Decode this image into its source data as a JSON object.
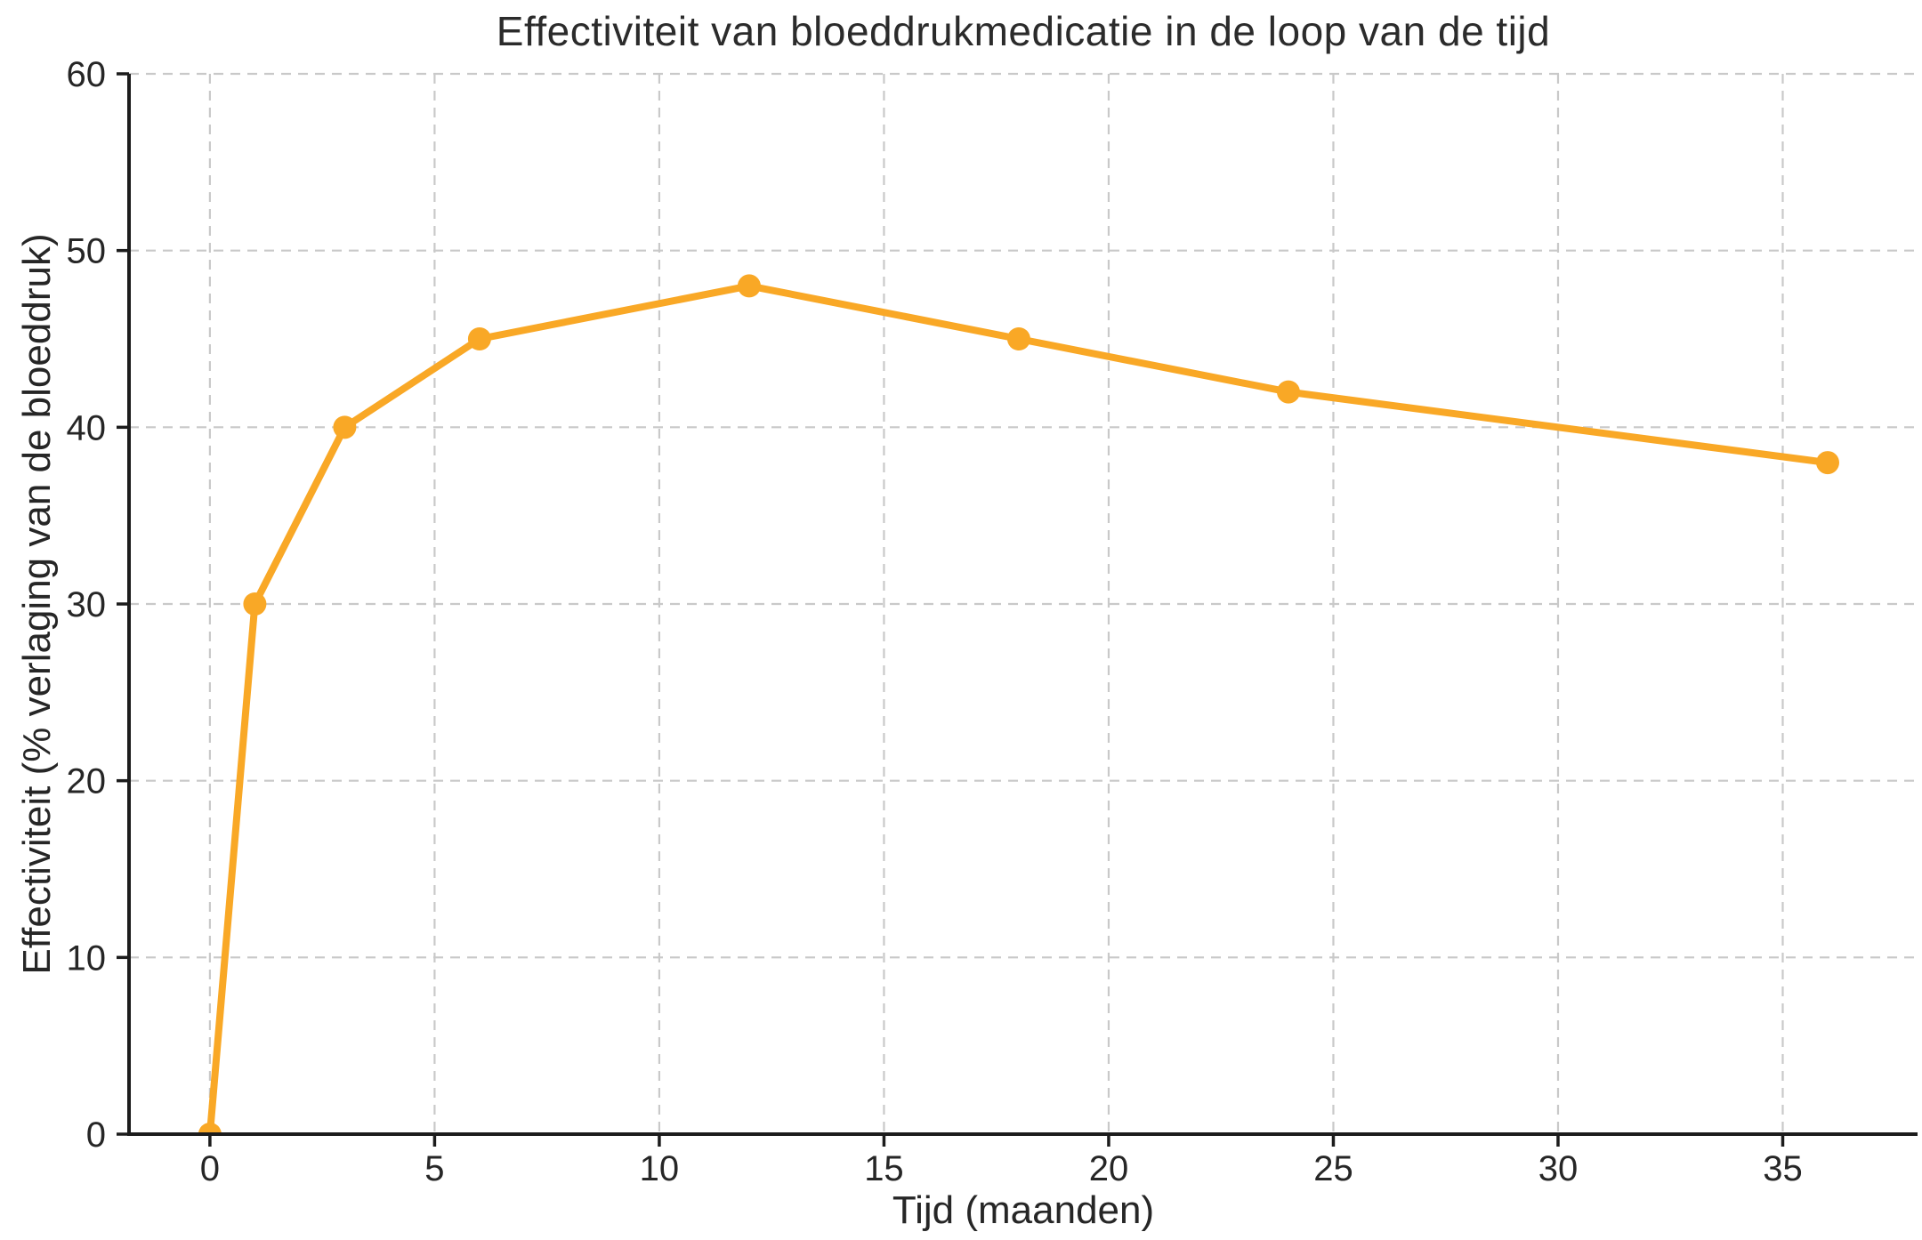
{
  "chart_data": {
    "type": "line",
    "title": "Effectiviteit van bloeddrukmedicatie in de loop van de tijd",
    "xlabel": "Tijd (maanden)",
    "ylabel": "Effectiviteit (% verlaging van de bloeddruk)",
    "series": [
      {
        "name": "Effectiviteit",
        "x": [
          0,
          1,
          3,
          6,
          12,
          18,
          24,
          36
        ],
        "y": [
          0,
          30,
          40,
          45,
          48,
          45,
          42,
          38
        ]
      }
    ],
    "xticks": [
      0,
      5,
      10,
      15,
      20,
      25,
      30,
      35
    ],
    "yticks": [
      0,
      10,
      20,
      30,
      40,
      50,
      60
    ],
    "xlim": [
      -1.8,
      38.0
    ],
    "ylim": [
      0,
      60
    ],
    "grid": true,
    "legend_position": "none",
    "colors": {
      "line": "#F9A826",
      "marker": "#F9A826",
      "grid": "#c9c9c9",
      "spine": "#1c1c1c",
      "text": "#262626",
      "background": "#ffffff"
    },
    "style": {
      "line_width": 8,
      "marker_radius": 13,
      "grid_dash": "11 8"
    }
  }
}
